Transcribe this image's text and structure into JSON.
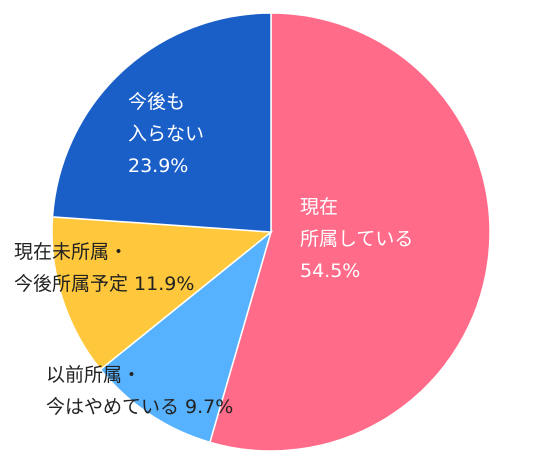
{
  "chart_data": {
    "type": "pie",
    "start_angle_deg": 0,
    "direction": "clockwise",
    "slices": [
      {
        "name": "現在所属している",
        "label_lines": [
          "現在",
          "所属している",
          "54.5%"
        ],
        "value": 54.5,
        "color": "#ff6b89"
      },
      {
        "name": "以前所属・今はやめている",
        "label_lines": [
          "以前所属・",
          "今はやめている 9.7%"
        ],
        "value": 9.7,
        "color": "#56b2ff"
      },
      {
        "name": "現在未所属・今後所属予定",
        "label_lines": [
          "現在未所属・",
          "今後所属予定 11.9%"
        ],
        "value": 11.9,
        "color": "#ffc83c"
      },
      {
        "name": "今後も入らない",
        "label_lines": [
          "今後も",
          "入らない",
          "23.9%"
        ],
        "value": 23.9,
        "color": "#1a5fc8"
      }
    ]
  }
}
